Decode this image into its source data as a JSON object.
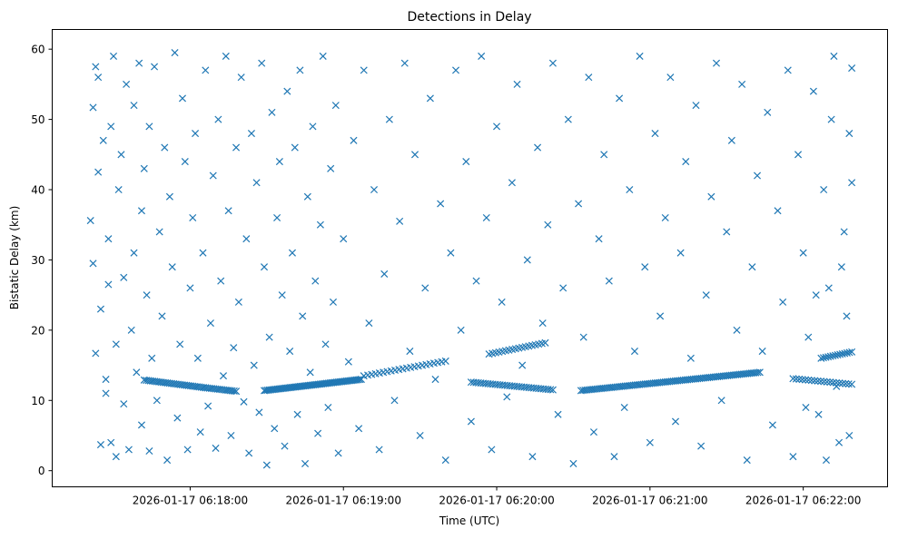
{
  "chart_data": {
    "type": "scatter",
    "title": "Detections in Delay",
    "xlabel": "Time (UTC)",
    "ylabel": "Bistatic Delay (km)",
    "x_units": "seconds after 2026-01-17 06:17:00",
    "xlim": [
      6,
      333
    ],
    "ylim": [
      -2.3,
      62.8
    ],
    "marker": "x",
    "color": "#1f77b4",
    "grid": false,
    "x_ticks": [
      {
        "value": 60,
        "label": "2026-01-17 06:18:00"
      },
      {
        "value": 120,
        "label": "2026-01-17 06:19:00"
      },
      {
        "value": 180,
        "label": "2026-01-17 06:20:00"
      },
      {
        "value": 240,
        "label": "2026-01-17 06:21:00"
      },
      {
        "value": 300,
        "label": "2026-01-17 06:22:00"
      }
    ],
    "y_ticks": [
      {
        "value": 0,
        "label": "0"
      },
      {
        "value": 10,
        "label": "10"
      },
      {
        "value": 20,
        "label": "20"
      },
      {
        "value": 30,
        "label": "30"
      },
      {
        "value": 40,
        "label": "40"
      },
      {
        "value": 50,
        "label": "50"
      },
      {
        "value": 60,
        "label": "60"
      }
    ],
    "tracks": [
      {
        "t0": 42,
        "t1": 66,
        "km0": 12.9,
        "km1": 11.8,
        "n": 30
      },
      {
        "t0": 66,
        "t1": 78,
        "km0": 11.8,
        "km1": 11.3,
        "n": 16
      },
      {
        "t0": 89,
        "t1": 127,
        "km0": 11.4,
        "km1": 13.0,
        "n": 60
      },
      {
        "t0": 128,
        "t1": 160,
        "km0": 13.5,
        "km1": 15.6,
        "n": 22
      },
      {
        "t0": 170,
        "t1": 202,
        "km0": 12.6,
        "km1": 11.5,
        "n": 35
      },
      {
        "t0": 177,
        "t1": 199,
        "km0": 16.6,
        "km1": 18.2,
        "n": 18
      },
      {
        "t0": 213,
        "t1": 283,
        "km0": 11.4,
        "km1": 14.0,
        "n": 90
      },
      {
        "t0": 296,
        "t1": 319,
        "km0": 13.1,
        "km1": 12.3,
        "n": 20
      },
      {
        "t0": 307,
        "t1": 319,
        "km0": 16.0,
        "km1": 16.9,
        "n": 14
      }
    ],
    "points": [
      [
        21,
        35.6
      ],
      [
        22,
        29.5
      ],
      [
        22,
        51.7
      ],
      [
        23,
        57.5
      ],
      [
        23,
        16.7
      ],
      [
        24,
        42.5
      ],
      [
        24,
        56
      ],
      [
        25,
        23
      ],
      [
        25,
        3.7
      ],
      [
        26,
        47
      ],
      [
        27,
        13
      ],
      [
        27,
        11
      ],
      [
        28,
        26.5
      ],
      [
        28,
        33
      ],
      [
        29,
        4
      ],
      [
        29,
        49
      ],
      [
        30,
        59
      ],
      [
        31,
        18
      ],
      [
        31,
        2
      ],
      [
        32,
        40
      ],
      [
        33,
        45
      ],
      [
        34,
        9.5
      ],
      [
        34,
        27.5
      ],
      [
        35,
        55
      ],
      [
        36,
        3
      ],
      [
        37,
        20
      ],
      [
        38,
        31
      ],
      [
        38,
        52
      ],
      [
        39,
        14
      ],
      [
        40,
        58
      ],
      [
        41,
        6.5
      ],
      [
        41,
        37
      ],
      [
        42,
        43
      ],
      [
        43,
        25
      ],
      [
        44,
        2.8
      ],
      [
        44,
        49
      ],
      [
        45,
        16
      ],
      [
        46,
        57.5
      ],
      [
        47,
        10
      ],
      [
        48,
        34
      ],
      [
        49,
        22
      ],
      [
        50,
        46
      ],
      [
        51,
        1.5
      ],
      [
        52,
        39
      ],
      [
        53,
        29
      ],
      [
        54,
        59.5
      ],
      [
        55,
        7.5
      ],
      [
        56,
        18
      ],
      [
        57,
        53
      ],
      [
        58,
        44
      ],
      [
        59,
        3
      ],
      [
        60,
        26
      ],
      [
        61,
        36
      ],
      [
        62,
        48
      ],
      [
        63,
        16
      ],
      [
        64,
        5.5
      ],
      [
        65,
        31
      ],
      [
        66,
        57
      ],
      [
        67,
        9.2
      ],
      [
        68,
        21
      ],
      [
        69,
        42
      ],
      [
        70,
        3.2
      ],
      [
        71,
        50
      ],
      [
        72,
        27
      ],
      [
        73,
        13.5
      ],
      [
        74,
        59
      ],
      [
        75,
        37
      ],
      [
        76,
        5
      ],
      [
        77,
        17.5
      ],
      [
        78,
        46
      ],
      [
        79,
        24
      ],
      [
        80,
        56
      ],
      [
        81,
        9.8
      ],
      [
        82,
        33
      ],
      [
        83,
        2.5
      ],
      [
        84,
        48
      ],
      [
        85,
        15
      ],
      [
        86,
        41
      ],
      [
        87,
        8.3
      ],
      [
        88,
        58
      ],
      [
        89,
        29
      ],
      [
        90,
        0.8
      ],
      [
        91,
        19
      ],
      [
        92,
        51
      ],
      [
        93,
        6
      ],
      [
        94,
        36
      ],
      [
        95,
        44
      ],
      [
        96,
        25
      ],
      [
        97,
        3.5
      ],
      [
        98,
        54
      ],
      [
        99,
        17
      ],
      [
        100,
        31
      ],
      [
        101,
        46
      ],
      [
        102,
        8
      ],
      [
        103,
        57
      ],
      [
        104,
        22
      ],
      [
        105,
        1
      ],
      [
        106,
        39
      ],
      [
        107,
        14
      ],
      [
        108,
        49
      ],
      [
        109,
        27
      ],
      [
        110,
        5.3
      ],
      [
        111,
        35
      ],
      [
        112,
        59
      ],
      [
        113,
        18
      ],
      [
        114,
        9
      ],
      [
        115,
        43
      ],
      [
        116,
        24
      ],
      [
        117,
        52
      ],
      [
        118,
        2.5
      ],
      [
        120,
        33
      ],
      [
        122,
        15.5
      ],
      [
        124,
        47
      ],
      [
        126,
        6
      ],
      [
        128,
        57
      ],
      [
        130,
        21
      ],
      [
        132,
        40
      ],
      [
        134,
        3
      ],
      [
        136,
        28
      ],
      [
        138,
        50
      ],
      [
        140,
        10
      ],
      [
        142,
        35.5
      ],
      [
        144,
        58
      ],
      [
        146,
        17
      ],
      [
        148,
        45
      ],
      [
        150,
        5
      ],
      [
        152,
        26
      ],
      [
        154,
        53
      ],
      [
        156,
        13
      ],
      [
        158,
        38
      ],
      [
        160,
        1.5
      ],
      [
        162,
        31
      ],
      [
        164,
        57
      ],
      [
        166,
        20
      ],
      [
        168,
        44
      ],
      [
        170,
        7
      ],
      [
        172,
        27
      ],
      [
        174,
        59
      ],
      [
        176,
        36
      ],
      [
        178,
        3
      ],
      [
        180,
        49
      ],
      [
        182,
        24
      ],
      [
        184,
        10.5
      ],
      [
        186,
        41
      ],
      [
        188,
        55
      ],
      [
        190,
        15
      ],
      [
        192,
        30
      ],
      [
        194,
        2
      ],
      [
        196,
        46
      ],
      [
        198,
        21
      ],
      [
        200,
        35
      ],
      [
        202,
        58
      ],
      [
        204,
        8
      ],
      [
        206,
        26
      ],
      [
        208,
        50
      ],
      [
        210,
        1
      ],
      [
        212,
        38
      ],
      [
        214,
        19
      ],
      [
        216,
        56
      ],
      [
        218,
        5.5
      ],
      [
        220,
        33
      ],
      [
        222,
        45
      ],
      [
        224,
        27
      ],
      [
        226,
        2
      ],
      [
        228,
        53
      ],
      [
        230,
        9
      ],
      [
        232,
        40
      ],
      [
        234,
        17
      ],
      [
        236,
        59
      ],
      [
        238,
        29
      ],
      [
        240,
        4
      ],
      [
        242,
        48
      ],
      [
        244,
        22
      ],
      [
        246,
        36
      ],
      [
        248,
        56
      ],
      [
        250,
        7
      ],
      [
        252,
        31
      ],
      [
        254,
        44
      ],
      [
        256,
        16
      ],
      [
        258,
        52
      ],
      [
        260,
        3.5
      ],
      [
        262,
        25
      ],
      [
        264,
        39
      ],
      [
        266,
        58
      ],
      [
        268,
        10
      ],
      [
        270,
        34
      ],
      [
        272,
        47
      ],
      [
        274,
        20
      ],
      [
        276,
        55
      ],
      [
        278,
        1.5
      ],
      [
        280,
        29
      ],
      [
        282,
        42
      ],
      [
        284,
        17
      ],
      [
        286,
        51
      ],
      [
        288,
        6.5
      ],
      [
        290,
        37
      ],
      [
        292,
        24
      ],
      [
        294,
        57
      ],
      [
        296,
        2
      ],
      [
        298,
        45
      ],
      [
        300,
        31
      ],
      [
        302,
        19
      ],
      [
        304,
        54
      ],
      [
        306,
        8
      ],
      [
        308,
        40
      ],
      [
        310,
        26
      ],
      [
        312,
        59
      ],
      [
        314,
        4
      ],
      [
        316,
        34
      ],
      [
        318,
        48
      ],
      [
        319,
        57.3
      ],
      [
        319,
        41
      ],
      [
        318,
        5
      ],
      [
        317,
        22
      ],
      [
        315,
        29
      ],
      [
        313,
        12
      ],
      [
        311,
        50
      ],
      [
        309,
        1.5
      ],
      [
        305,
        25
      ],
      [
        301,
        9
      ]
    ]
  }
}
